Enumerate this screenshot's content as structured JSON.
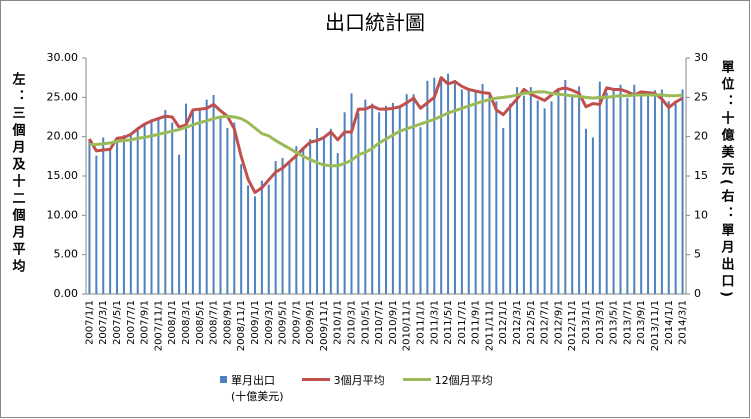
{
  "chart_data": {
    "type": "bar-line",
    "title": "出口統計圖",
    "y_label": "左：三個月及十二個月平均",
    "y2_label": "單位：十億美元(右：單月出口)",
    "categories": [
      "2007/1/1",
      null,
      "2007/3/1",
      null,
      "2007/5/1",
      null,
      "2007/7/1",
      null,
      "2007/9/1",
      null,
      "2007/11/1",
      null,
      "2008/1/1",
      null,
      "2008/3/1",
      null,
      "2008/5/1",
      null,
      "2008/7/1",
      null,
      "2008/9/1",
      null,
      "2008/11/1",
      null,
      "2009/1/1",
      null,
      "2009/3/1",
      null,
      "2009/5/1",
      null,
      "2009/7/1",
      null,
      "2009/9/1",
      null,
      "2009/11/1",
      null,
      "2010/1/1",
      null,
      "2010/3/1",
      null,
      "2010/5/1",
      null,
      "2010/7/1",
      null,
      "2010/9/1",
      null,
      "2010/11/1",
      null,
      "2011/1/1",
      null,
      "2011/3/1",
      null,
      "2011/5/1",
      null,
      "2011/7/1",
      null,
      "2011/9/1",
      null,
      "2011/11/1",
      null,
      "2012/1/1",
      null,
      "2012/3/1",
      null,
      "2012/5/1",
      null,
      "2012/7/1",
      null,
      "2012/9/1",
      null,
      "2012/11/1",
      null,
      "2013/1/1",
      null,
      "2013/3/1",
      null,
      "2013/5/1",
      null,
      "2013/7/1",
      null,
      "2013/9/1",
      null,
      "2013/11/1",
      null,
      "2014/1/1",
      null,
      "2014/3/1"
    ],
    "series": [
      {
        "name": "單月出口\n(十億美元)",
        "type": "bar",
        "axis": "y2",
        "color": "#4f81bd",
        "values": [
          19.7,
          17.6,
          19.9,
          18.5,
          19.6,
          20.2,
          20.2,
          21.0,
          21.6,
          22.2,
          22.5,
          23.4,
          21.8,
          17.7,
          24.2,
          23.5,
          23.5,
          24.7,
          25.3,
          22.4,
          21.1,
          21.8,
          16.5,
          13.8,
          12.4,
          14.4,
          13.9,
          16.9,
          17.3,
          16.8,
          18.8,
          18.5,
          19.7,
          21.1,
          19.9,
          21.0,
          17.9,
          23.1,
          25.5,
          23.0,
          24.7,
          24.2,
          23.1,
          23.9,
          24.3,
          23.9,
          25.4,
          25.4,
          21.2,
          27.1,
          27.5,
          27.3,
          28.0,
          27.2,
          26.0,
          26.1,
          25.9,
          26.7,
          25.2,
          24.5,
          21.1,
          24.2,
          26.3,
          25.2,
          26.3,
          24.6,
          23.6,
          24.5,
          26.1,
          27.2,
          25.2,
          26.4,
          21.0,
          19.9,
          27.0,
          25.6,
          26.2,
          26.6,
          24.9,
          26.6,
          25.4,
          25.4,
          25.9,
          26.0,
          24.5,
          24.2,
          26.0
        ]
      },
      {
        "name": "3個月平均",
        "type": "line",
        "color": "#c0504d",
        "values": [
          19.7,
          18.2,
          18.3,
          18.4,
          19.8,
          19.9,
          20.3,
          21.0,
          21.6,
          22.0,
          22.3,
          22.6,
          22.5,
          21.2,
          21.5,
          23.4,
          23.5,
          23.6,
          24.1,
          23.3,
          22.6,
          21.0,
          17.5,
          14.6,
          12.9,
          13.5,
          14.5,
          15.5,
          16.0,
          16.8,
          17.6,
          18.5,
          19.3,
          19.5,
          19.9,
          20.6,
          19.6,
          20.6,
          20.6,
          23.5,
          23.5,
          23.9,
          23.5,
          23.5,
          23.6,
          23.8,
          24.3,
          24.9,
          23.6,
          24.3,
          25.0,
          27.5,
          26.7,
          27.0,
          26.4,
          26.0,
          25.8,
          25.6,
          25.5,
          23.4,
          22.8,
          23.8,
          24.8,
          26.0,
          25.4,
          25.0,
          24.6,
          25.3,
          26.0,
          26.2,
          25.9,
          25.5,
          23.8,
          24.2,
          24.1,
          26.2,
          26.0,
          26.0,
          25.7,
          25.3,
          25.7,
          25.6,
          25.5,
          24.8,
          23.7,
          24.4,
          24.9
        ]
      },
      {
        "name": "12個月平均",
        "type": "line",
        "color": "#9bbb59",
        "values": [
          19.0,
          19.0,
          19.1,
          19.2,
          19.4,
          19.5,
          19.6,
          19.8,
          19.9,
          20.1,
          20.3,
          20.5,
          20.7,
          20.9,
          21.2,
          21.5,
          21.8,
          22.0,
          22.3,
          22.5,
          22.6,
          22.5,
          22.3,
          21.8,
          21.1,
          20.4,
          20.1,
          19.5,
          19.0,
          18.5,
          18.0,
          17.5,
          17.1,
          16.7,
          16.4,
          16.3,
          16.3,
          16.6,
          17.0,
          17.7,
          18.0,
          18.5,
          19.2,
          19.7,
          20.2,
          20.7,
          21.0,
          21.3,
          21.6,
          21.9,
          22.2,
          22.6,
          23.0,
          23.3,
          23.6,
          23.9,
          24.2,
          24.5,
          24.7,
          24.9,
          25.0,
          25.1,
          25.3,
          25.5,
          25.6,
          25.7,
          25.7,
          25.5,
          25.4,
          25.3,
          25.2,
          25.1,
          25.0,
          24.9,
          25.0,
          25.0,
          25.1,
          25.2,
          25.2,
          25.3,
          25.3,
          25.3,
          25.3,
          25.3,
          25.2,
          25.2,
          25.3
        ]
      }
    ],
    "ylim": [
      0,
      30
    ],
    "yticks": [
      {
        "value": 0,
        "label": "0.00"
      },
      {
        "value": 5,
        "label": "5.00"
      },
      {
        "value": 10,
        "label": "10.00"
      },
      {
        "value": 15,
        "label": "15.00"
      },
      {
        "value": 20,
        "label": "20.00"
      },
      {
        "value": 25,
        "label": "25.00"
      },
      {
        "value": 30,
        "label": "30.00"
      }
    ],
    "y2lim": [
      0,
      30
    ],
    "y2ticks": [
      0,
      5,
      10,
      15,
      20,
      25,
      30
    ],
    "legend": "bottom"
  }
}
